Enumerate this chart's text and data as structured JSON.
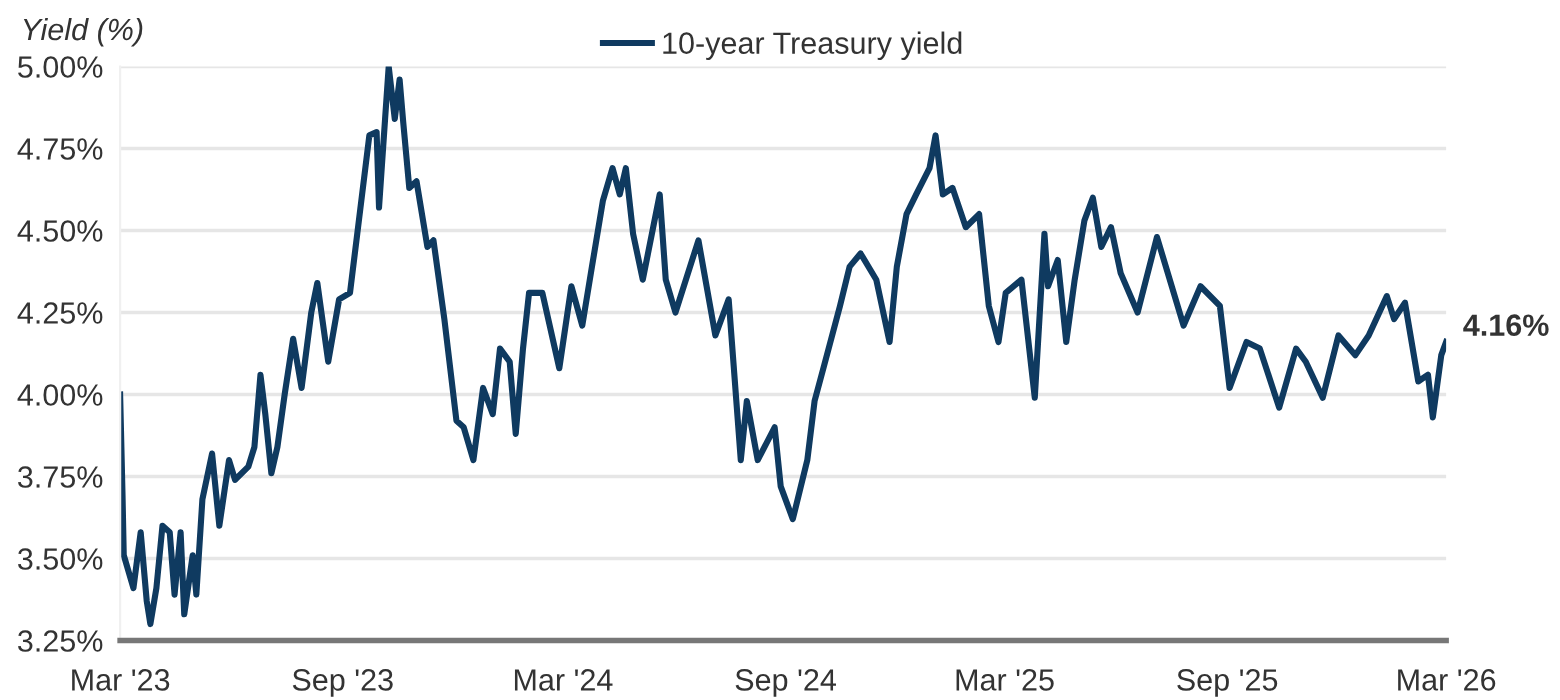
{
  "chart_data": {
    "type": "line",
    "ylabel": "Yield (%)",
    "x": [
      "2023-03-01",
      "2023-03-03",
      "2023-03-04",
      "2023-03-12",
      "2023-03-18",
      "2023-03-23",
      "2023-03-26",
      "2023-03-31",
      "2023-04-05",
      "2023-04-11",
      "2023-04-15",
      "2023-04-20",
      "2023-04-23",
      "2023-04-30",
      "2023-05-03",
      "2023-05-08",
      "2023-05-16",
      "2023-05-22",
      "2023-05-30",
      "2023-06-04",
      "2023-06-15",
      "2023-06-20",
      "2023-06-25",
      "2023-06-29",
      "2023-07-04",
      "2023-07-09",
      "2023-07-15",
      "2023-07-22",
      "2023-07-29",
      "2023-08-06",
      "2023-08-11",
      "2023-08-20",
      "2023-08-29",
      "2023-09-07",
      "2023-09-13",
      "2023-09-23",
      "2023-09-29",
      "2023-10-01",
      "2023-10-06",
      "2023-10-09",
      "2023-10-14",
      "2023-10-18",
      "2023-10-21",
      "2023-10-26",
      "2023-11-01",
      "2023-11-10",
      "2023-11-15",
      "2023-11-24",
      "2023-12-04",
      "2023-12-10",
      "2023-12-18",
      "2023-12-26",
      "2024-01-03",
      "2024-01-09",
      "2024-01-17",
      "2024-01-22",
      "2024-01-28",
      "2024-02-02",
      "2024-02-13",
      "2024-02-27",
      "2024-03-08",
      "2024-03-17",
      "2024-03-25",
      "2024-04-03",
      "2024-04-11",
      "2024-04-17",
      "2024-04-22",
      "2024-04-28",
      "2024-05-06",
      "2024-05-20",
      "2024-05-25",
      "2024-06-02",
      "2024-06-21",
      "2024-07-05",
      "2024-07-16",
      "2024-07-26",
      "2024-07-31",
      "2024-08-09",
      "2024-08-23",
      "2024-08-28",
      "2024-09-07",
      "2024-09-19",
      "2024-09-25",
      "2024-10-03",
      "2024-10-16",
      "2024-10-24",
      "2024-11-02",
      "2024-11-15",
      "2024-11-26",
      "2024-12-02",
      "2024-12-10",
      "2024-12-18",
      "2024-12-29",
      "2025-01-03",
      "2025-01-09",
      "2025-01-17",
      "2025-01-28",
      "2025-02-08",
      "2025-02-16",
      "2025-02-24",
      "2025-03-02",
      "2025-03-15",
      "2025-03-26",
      "2025-04-03",
      "2025-04-06",
      "2025-04-14",
      "2025-04-21",
      "2025-04-28",
      "2025-05-06",
      "2025-05-13",
      "2025-05-20",
      "2025-05-28",
      "2025-06-05",
      "2025-06-19",
      "2025-07-05",
      "2025-07-27",
      "2025-08-10",
      "2025-08-26",
      "2025-09-03",
      "2025-09-17",
      "2025-09-28",
      "2025-10-14",
      "2025-10-28",
      "2025-11-05",
      "2025-11-19",
      "2025-12-02",
      "2025-12-16",
      "2025-12-27",
      "2026-01-11",
      "2026-01-17",
      "2026-01-26",
      "2026-02-06",
      "2026-02-14",
      "2026-02-18",
      "2026-02-25",
      "2026-03-01"
    ],
    "series": [
      {
        "name": "10-year Treasury yield",
        "color": "#0f3a60",
        "values": [
          4.0,
          3.69,
          3.51,
          3.41,
          3.58,
          3.37,
          3.3,
          3.41,
          3.6,
          3.58,
          3.39,
          3.58,
          3.33,
          3.51,
          3.39,
          3.68,
          3.82,
          3.6,
          3.8,
          3.74,
          3.78,
          3.84,
          4.06,
          3.94,
          3.76,
          3.84,
          4.0,
          4.17,
          4.02,
          4.25,
          4.34,
          4.1,
          4.29,
          4.31,
          4.49,
          4.79,
          4.8,
          4.57,
          4.84,
          5.0,
          4.84,
          4.96,
          4.83,
          4.63,
          4.65,
          4.45,
          4.47,
          4.23,
          3.92,
          3.9,
          3.8,
          4.02,
          3.94,
          4.14,
          4.1,
          3.88,
          4.14,
          4.31,
          4.31,
          4.08,
          4.33,
          4.21,
          4.39,
          4.59,
          4.69,
          4.61,
          4.69,
          4.49,
          4.35,
          4.61,
          4.35,
          4.25,
          4.47,
          4.18,
          4.29,
          3.8,
          3.98,
          3.8,
          3.9,
          3.72,
          3.62,
          3.8,
          3.98,
          4.09,
          4.27,
          4.39,
          4.43,
          4.35,
          4.16,
          4.39,
          4.55,
          4.61,
          4.69,
          4.79,
          4.61,
          4.63,
          4.51,
          4.55,
          4.27,
          4.16,
          4.31,
          4.35,
          3.99,
          4.49,
          4.33,
          4.41,
          4.16,
          4.35,
          4.53,
          4.6,
          4.45,
          4.51,
          4.37,
          4.25,
          4.48,
          4.21,
          4.33,
          4.27,
          4.02,
          4.16,
          4.14,
          3.96,
          4.14,
          4.1,
          3.99,
          4.18,
          4.12,
          4.18,
          4.3,
          4.23,
          4.28,
          4.04,
          4.06,
          3.93,
          4.12,
          4.16
        ]
      }
    ],
    "xlim": [
      "2023-03-01",
      "2026-03-01"
    ],
    "xticks": [
      {
        "value": "2023-03-01",
        "label": "Mar '23"
      },
      {
        "value": "2023-09-01",
        "label": "Sep '23"
      },
      {
        "value": "2024-03-01",
        "label": "Mar '24"
      },
      {
        "value": "2024-09-01",
        "label": "Sep '24"
      },
      {
        "value": "2025-03-01",
        "label": "Mar '25"
      },
      {
        "value": "2025-09-01",
        "label": "Sep '25"
      },
      {
        "value": "2026-03-01",
        "label": "Mar '26"
      }
    ],
    "ylim": [
      3.25,
      5.0
    ],
    "yticks": [
      {
        "value": 3.25,
        "label": "3.25%"
      },
      {
        "value": 3.5,
        "label": "3.50%"
      },
      {
        "value": 3.75,
        "label": "3.75%"
      },
      {
        "value": 4.0,
        "label": "4.00%"
      },
      {
        "value": 4.25,
        "label": "4.25%"
      },
      {
        "value": 4.5,
        "label": "4.50%"
      },
      {
        "value": 4.75,
        "label": "4.75%"
      },
      {
        "value": 5.0,
        "label": "5.00%"
      }
    ],
    "annotations": [
      {
        "text": "4.16%",
        "x": "2026-03-01",
        "y": 4.16
      }
    ],
    "grid": "y",
    "legend": "top",
    "marker": "none",
    "line_style": "solid"
  }
}
